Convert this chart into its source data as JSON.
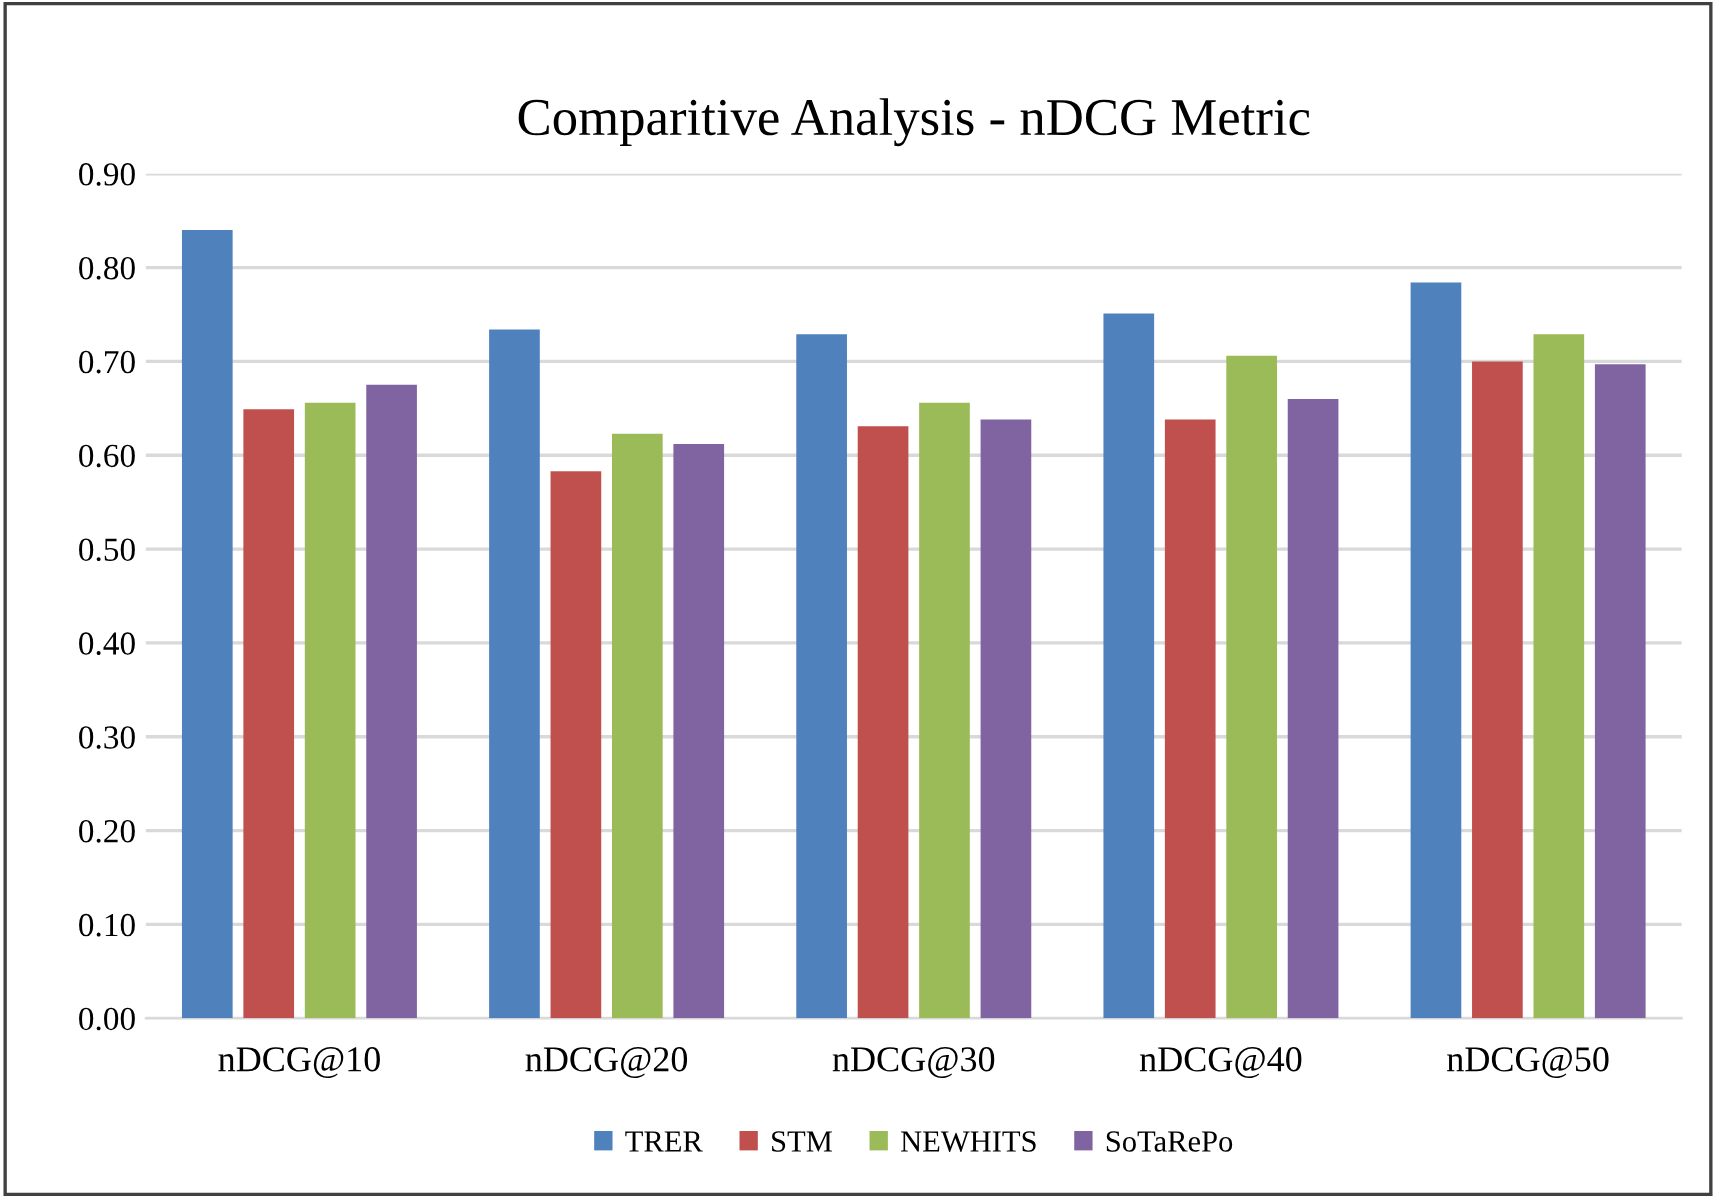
{
  "chart_data": {
    "type": "bar",
    "title": "Comparitive Analysis - nDCG Metric",
    "categories": [
      "nDCG@10",
      "nDCG@20",
      "nDCG@30",
      "nDCG@40",
      "nDCG@50"
    ],
    "series": [
      {
        "name": "TRER",
        "color": "#4f81bd",
        "values": [
          0.84,
          0.734,
          0.729,
          0.751,
          0.784
        ]
      },
      {
        "name": "STM",
        "color": "#c0504d",
        "values": [
          0.649,
          0.583,
          0.631,
          0.638,
          0.7
        ]
      },
      {
        "name": "NEWHITS",
        "color": "#9bbb59",
        "values": [
          0.656,
          0.623,
          0.656,
          0.706,
          0.729
        ]
      },
      {
        "name": "SoTaRePo",
        "color": "#8064a2",
        "values": [
          0.675,
          0.612,
          0.638,
          0.66,
          0.697
        ]
      }
    ],
    "ylim": [
      0,
      0.9
    ],
    "yticks": [
      {
        "value": 0,
        "label": "0.00"
      },
      {
        "value": 0.1,
        "label": "0.10"
      },
      {
        "value": 0.2,
        "label": "0.20"
      },
      {
        "value": 0.3,
        "label": "0.30"
      },
      {
        "value": 0.4,
        "label": "0.40"
      },
      {
        "value": 0.5,
        "label": "0.50"
      },
      {
        "value": 0.6,
        "label": "0.60"
      },
      {
        "value": 0.7,
        "label": "0.70"
      },
      {
        "value": 0.8,
        "label": "0.80"
      },
      {
        "value": 0.9,
        "label": "0.90"
      }
    ],
    "grid": "y",
    "legend": "bottom"
  }
}
